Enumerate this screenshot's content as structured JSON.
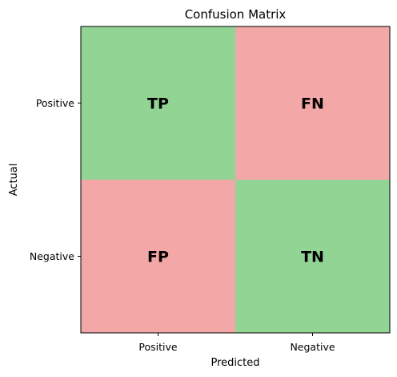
{
  "chart_data": {
    "type": "heatmap",
    "title": "Confusion Matrix",
    "xlabel": "Predicted",
    "ylabel": "Actual",
    "x_categories": [
      "Positive",
      "Negative"
    ],
    "y_categories": [
      "Positive",
      "Negative"
    ],
    "cells": [
      [
        "TP",
        "FN"
      ],
      [
        "FP",
        "TN"
      ]
    ],
    "cell_colors": [
      [
        "#92d494",
        "#f4a7a7"
      ],
      [
        "#f4a7a7",
        "#92d494"
      ]
    ],
    "grid": false
  }
}
